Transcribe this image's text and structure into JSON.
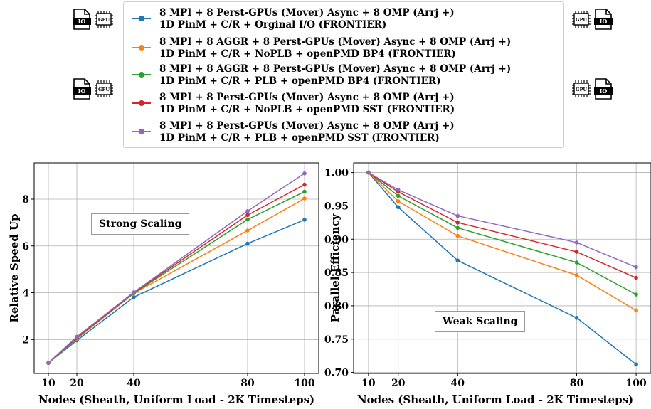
{
  "legend": {
    "entries": [
      {
        "line1": "8 MPI + 8 Perst-GPUs (Mover) Async + 8 OMP (Arrj +)",
        "line2": "1D PinM + C/R + Orginal I/O (FRONTIER)",
        "color": "#1f77b4"
      },
      {
        "line1": "8 MPI + 8 AGGR + 8 Perst-GPUs (Mover) Async + 8 OMP (Arrj +)",
        "line2": "1D PinM + C/R + NoPLB + openPMD BP4 (FRONTIER)",
        "color": "#ff7f0e"
      },
      {
        "line1": "8 MPI + 8 AGGR + 8 Perst-GPUs (Mover) Async + 8 OMP (Arrj +)",
        "line2": "1D PinM + C/R + PLB + openPMD BP4 (FRONTIER)",
        "color": "#2ca02c"
      },
      {
        "line1": "8 MPI + 8 Perst-GPUs (Mover) Async + 8 OMP (Arrj +)",
        "line2": "1D PinM + C/R + NoPLB + openPMD SST (FRONTIER)",
        "color": "#d62728"
      },
      {
        "line1": "8 MPI + 8 Perst-GPUs (Mover) Async + 8 OMP (Arrj +)",
        "line2": "1D PinM + C/R + PLB + openPMD SST (FRONTIER)",
        "color": "#9467bd"
      }
    ],
    "icons": {
      "io_label": "IO",
      "gpu_label": "GPU"
    }
  },
  "chart_data": [
    {
      "type": "line",
      "x": [
        10,
        20,
        40,
        80,
        100
      ],
      "xlabel": "Nodes (Sheath, Uniform Load - 2K Timesteps)",
      "ylabel": "Relative Speed Up",
      "xticks": [
        10,
        20,
        40,
        80,
        100
      ],
      "yticks": [
        2,
        4,
        6,
        8
      ],
      "xlim": [
        5,
        105
      ],
      "ylim": [
        0.55,
        9.55
      ],
      "grid": true,
      "annotation": "Strong Scaling",
      "series": [
        {
          "values": [
            1.0,
            1.96,
            3.81,
            6.1,
            7.12
          ],
          "color": "#1f77b4"
        },
        {
          "values": [
            1.0,
            2.03,
            3.97,
            6.66,
            8.03
          ],
          "color": "#ff7f0e"
        },
        {
          "values": [
            1.0,
            2.06,
            3.98,
            7.13,
            8.32
          ],
          "color": "#2ca02c"
        },
        {
          "values": [
            1.0,
            2.08,
            4.0,
            7.32,
            8.62
          ],
          "color": "#d62728"
        },
        {
          "values": [
            1.0,
            2.12,
            4.02,
            7.49,
            9.1
          ],
          "color": "#9467bd"
        }
      ]
    },
    {
      "type": "line",
      "x": [
        10,
        20,
        40,
        80,
        100
      ],
      "xlabel": "Nodes (Sheath, Uniform Load - 2K Timesteps)",
      "ylabel": "Parallel Efficiency",
      "xticks": [
        10,
        20,
        40,
        80,
        100
      ],
      "yticks": [
        0.7,
        0.75,
        0.8,
        0.85,
        0.9,
        0.95,
        1.0
      ],
      "yticklabels": [
        "0.70",
        "0.75",
        "0.80",
        "0.85",
        "0.90",
        "0.95",
        "1.00"
      ],
      "xlim": [
        5,
        105
      ],
      "ylim": [
        0.6985,
        1.0145
      ],
      "grid": true,
      "annotation": "Weak Scaling",
      "series": [
        {
          "values": [
            1.0,
            0.948,
            0.868,
            0.782,
            0.712
          ],
          "color": "#1f77b4"
        },
        {
          "values": [
            1.0,
            0.957,
            0.905,
            0.846,
            0.793
          ],
          "color": "#ff7f0e"
        },
        {
          "values": [
            1.0,
            0.965,
            0.917,
            0.865,
            0.817
          ],
          "color": "#2ca02c"
        },
        {
          "values": [
            1.0,
            0.971,
            0.925,
            0.881,
            0.842
          ],
          "color": "#d62728"
        },
        {
          "values": [
            1.0,
            0.974,
            0.935,
            0.895,
            0.858
          ],
          "color": "#9467bd"
        }
      ]
    }
  ]
}
